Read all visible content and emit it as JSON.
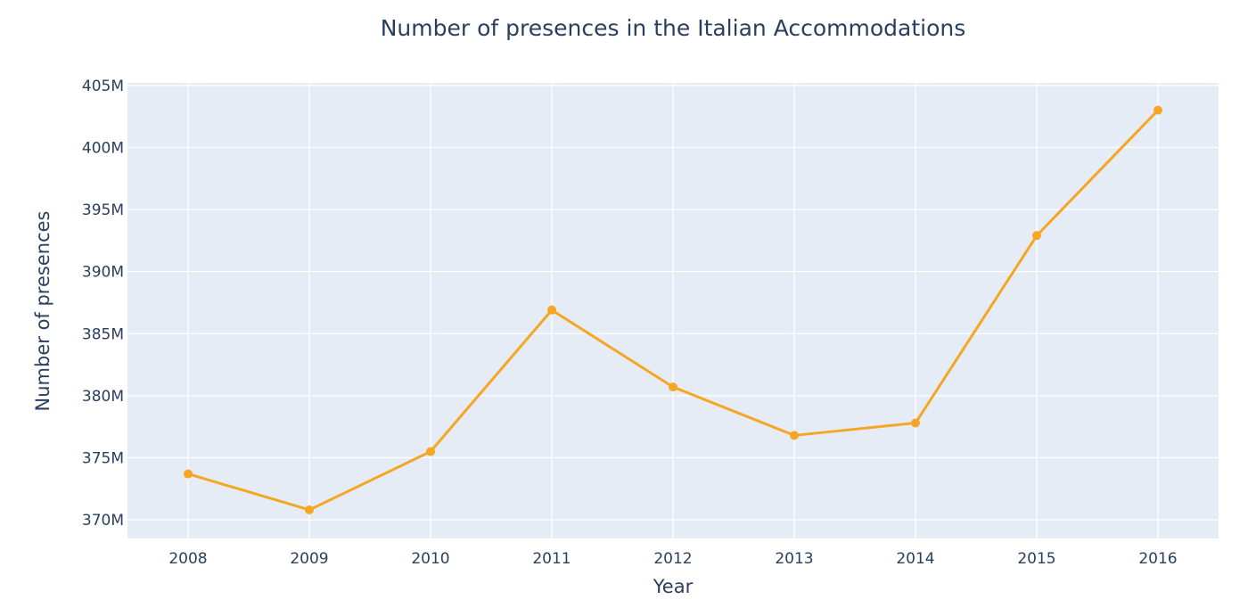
{
  "chart_data": {
    "type": "line",
    "title": "Number of presences in the Italian Accommodations",
    "xlabel": "Year",
    "ylabel": "Number of presences",
    "x": [
      2008,
      2009,
      2010,
      2011,
      2012,
      2013,
      2014,
      2015,
      2016
    ],
    "x_tick_labels": [
      "2008",
      "2009",
      "2010",
      "2011",
      "2012",
      "2013",
      "2014",
      "2015",
      "2016"
    ],
    "series": [
      {
        "values": [
          373700000,
          370800000,
          375500000,
          386900000,
          380700000,
          376800000,
          377800000,
          392900000,
          403000000
        ]
      }
    ],
    "ylim": [
      368500000,
      405200000
    ],
    "y_ticks": [
      370000000,
      375000000,
      380000000,
      385000000,
      390000000,
      395000000,
      400000000,
      405000000
    ],
    "y_tick_labels": [
      "370M",
      "375M",
      "380M",
      "385M",
      "390M",
      "395M",
      "400M",
      "405M"
    ],
    "grid": true,
    "colors": {
      "line": "#f5a623",
      "plot_background": "#e5ecf6",
      "grid": "#ffffff",
      "text": "#2a3f5f"
    }
  }
}
